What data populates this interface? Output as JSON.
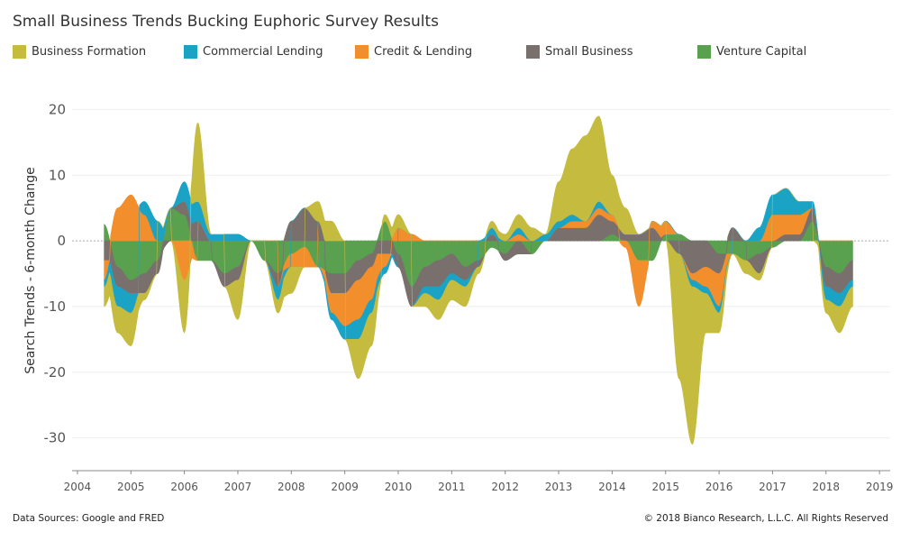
{
  "title": "Small Business Trends Bucking Euphoric Survey Results",
  "footer": {
    "sources": "Data Sources: Google and FRED",
    "copyright": "© 2018 Bianco Research, L.L.C. All Rights Reserved"
  },
  "chart_data": {
    "type": "area",
    "stacked": true,
    "title": "Small Business Trends Bucking Euphoric Survey Results",
    "xlabel": "",
    "ylabel": "Search Trends - 6-month Change",
    "xlim": [
      2003.9,
      2019.2
    ],
    "ylim": [
      -35,
      25
    ],
    "x_ticks": [
      "2004",
      "2005",
      "2006",
      "2007",
      "2008",
      "2009",
      "2010",
      "2011",
      "2012",
      "2013",
      "2014",
      "2015",
      "2016",
      "2017",
      "2018",
      "2019"
    ],
    "y_ticks": [
      20,
      10,
      0,
      -10,
      -20,
      -30
    ],
    "grid": true,
    "legend_position": "top",
    "x": [
      2004.5,
      2004.75,
      2005.0,
      2005.25,
      2005.5,
      2005.75,
      2006.0,
      2006.25,
      2006.5,
      2006.75,
      2007.0,
      2007.25,
      2007.5,
      2007.75,
      2008.0,
      2008.25,
      2008.5,
      2008.75,
      2009.0,
      2009.25,
      2009.5,
      2009.75,
      2010.0,
      2010.25,
      2010.5,
      2010.75,
      2011.0,
      2011.25,
      2011.5,
      2011.75,
      2012.0,
      2012.25,
      2012.5,
      2012.75,
      2013.0,
      2013.25,
      2013.5,
      2013.75,
      2014.0,
      2014.25,
      2014.5,
      2014.75,
      2015.0,
      2015.25,
      2015.5,
      2015.75,
      2016.0,
      2016.25,
      2016.5,
      2016.75,
      2017.0,
      2017.25,
      2017.5,
      2017.75,
      2018.0,
      2018.25,
      2018.5
    ],
    "series": [
      {
        "name": "Venture Capital",
        "color": "#59a14f",
        "values": [
          2.5,
          -4,
          -6,
          -5,
          -3,
          5,
          4,
          -3,
          -3,
          -5,
          -4,
          0,
          -3,
          -5,
          -2,
          -1,
          -4,
          -5,
          -5,
          -3,
          -2,
          3,
          -2,
          -7,
          -4,
          -3,
          -2,
          -4,
          -3,
          -1,
          -2,
          0,
          -2,
          0,
          0,
          0,
          0,
          0,
          1,
          0,
          -3,
          -3,
          1,
          1,
          0,
          0,
          -2,
          -2,
          -3,
          -2,
          -1,
          0,
          0,
          3,
          -4,
          -5,
          -3
        ]
      },
      {
        "name": "Small Business",
        "color": "#79706e",
        "values": [
          -3,
          -3,
          -2,
          -3,
          -2,
          0,
          2,
          3,
          0,
          -2,
          -2,
          0,
          0,
          -2,
          3,
          5,
          3,
          -3,
          -3,
          -3,
          -2,
          -2,
          -2,
          -3,
          -3,
          -4,
          -3,
          -2,
          -1,
          1,
          -1,
          -2,
          0,
          0,
          2,
          2,
          2,
          4,
          2,
          1,
          1,
          2,
          0,
          -2,
          -5,
          -4,
          -3,
          2,
          0,
          -3,
          0,
          1,
          1,
          2,
          -3,
          -3,
          -3
        ]
      },
      {
        "name": "Credit & Lending",
        "color": "#f28e2b",
        "values": [
          -3,
          5,
          7,
          4,
          0,
          0,
          -6,
          0,
          0,
          0,
          0,
          0,
          0,
          0,
          -2,
          -3,
          0,
          -3,
          -5,
          -6,
          -5,
          -2,
          2,
          1,
          0,
          0,
          0,
          0,
          0,
          0,
          0,
          1,
          0,
          0,
          0,
          1,
          1,
          1,
          1,
          -1,
          -7,
          1,
          2,
          0,
          -1,
          -3,
          -5,
          0,
          0,
          0,
          4,
          3,
          3,
          0,
          0,
          0,
          0
        ]
      },
      {
        "name": "Commercial Lending",
        "color": "#1ba3c6",
        "values": [
          -1,
          -3,
          -3,
          2,
          3,
          0,
          3,
          3,
          1,
          1,
          1,
          0,
          0,
          -2,
          0,
          0,
          0,
          -1,
          -2,
          -3,
          -2,
          -1,
          0,
          0,
          -1,
          -2,
          -1,
          -1,
          0,
          1,
          0,
          1,
          0,
          1,
          1,
          1,
          0,
          1,
          0,
          0,
          0,
          0,
          0,
          0,
          -1,
          -1,
          -1,
          0,
          0,
          2,
          3,
          4,
          2,
          1,
          -2,
          -2,
          -1
        ]
      },
      {
        "name": "Business Formation",
        "color": "#c5bb3f",
        "values": [
          -3,
          -4,
          -5,
          -1,
          0,
          0,
          -8,
          12,
          0,
          0,
          -6,
          0,
          0,
          -2,
          -4,
          0,
          3,
          3,
          0,
          -6,
          -5,
          1,
          2,
          0,
          -2,
          -3,
          -3,
          -3,
          -1,
          1,
          1,
          2,
          2,
          0,
          6,
          10,
          13,
          13,
          6,
          4,
          0,
          0,
          0,
          -19,
          -24,
          -6,
          -3,
          0,
          -2,
          -1,
          0,
          0,
          0,
          0,
          -2,
          -4,
          -3
        ]
      }
    ]
  }
}
